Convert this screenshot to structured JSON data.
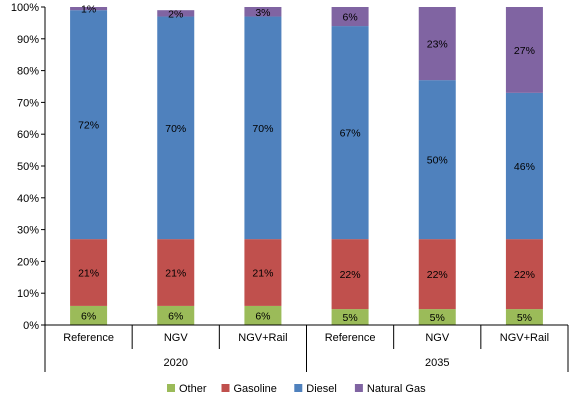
{
  "chart_data": {
    "type": "bar",
    "stacked": true,
    "percent": true,
    "groups": [
      {
        "label": "2020",
        "categories": [
          "Reference",
          "NGV",
          "NGV+Rail"
        ]
      },
      {
        "label": "2035",
        "categories": [
          "Reference",
          "NGV",
          "NGV+Rail"
        ]
      }
    ],
    "categories": [
      "Reference",
      "NGV",
      "NGV+Rail",
      "Reference",
      "NGV",
      "NGV+Rail"
    ],
    "series": [
      {
        "name": "Other",
        "color": "#9bbb59",
        "values": [
          6,
          6,
          6,
          5,
          5,
          5
        ],
        "labels": [
          "6%",
          "6%",
          "6%",
          "5%",
          "5%",
          "5%"
        ]
      },
      {
        "name": "Gasoline",
        "color": "#c0504d",
        "values": [
          21,
          21,
          21,
          22,
          22,
          22
        ],
        "labels": [
          "21%",
          "21%",
          "21%",
          "22%",
          "22%",
          "22%"
        ]
      },
      {
        "name": "Diesel",
        "color": "#4f81bd",
        "values": [
          72,
          70,
          70,
          67,
          50,
          46
        ],
        "labels": [
          "72%",
          "70%",
          "70%",
          "67%",
          "50%",
          "46%"
        ]
      },
      {
        "name": "Natural Gas",
        "color": "#8064a2",
        "values": [
          1,
          2,
          3,
          6,
          23,
          27
        ],
        "labels": [
          "1%",
          "2%",
          "3%",
          "6%",
          "23%",
          "27%"
        ]
      }
    ],
    "ylim": [
      0,
      100
    ],
    "yticks": [
      "0%",
      "10%",
      "20%",
      "30%",
      "40%",
      "50%",
      "60%",
      "70%",
      "80%",
      "90%",
      "100%"
    ],
    "grid": false,
    "legend_position": "bottom"
  }
}
